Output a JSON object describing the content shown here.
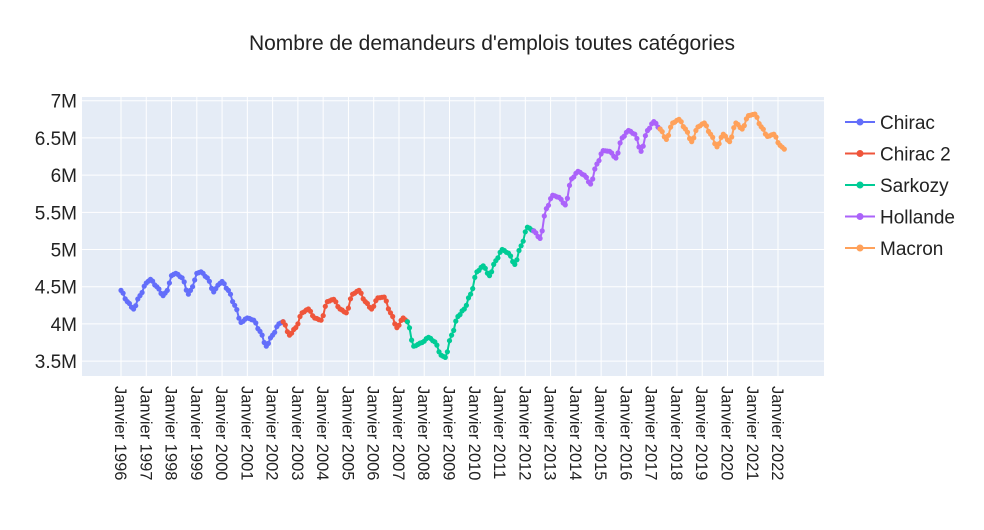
{
  "chart_data": {
    "type": "line",
    "title": "Nombre de demandeurs d'emplois toutes catégories",
    "xlabel": "",
    "ylabel": "",
    "ylim": [
      3300000,
      7050000
    ],
    "x_ticks": [
      "Janvier 1996",
      "Janvier 1997",
      "Janvier 1998",
      "Janvier 1999",
      "Janvier 2000",
      "Janvier 2001",
      "Janvier 2002",
      "Janvier 2003",
      "Janvier 2004",
      "Janvier 2005",
      "Janvier 2006",
      "Janvier 2007",
      "Janvier 2008",
      "Janvier 2009",
      "Janvier 2010",
      "Janvier 2011",
      "Janvier 2012",
      "Janvier 2013",
      "Janvier 2014",
      "Janvier 2015",
      "Janvier 2016",
      "Janvier 2017",
      "Janvier 2018",
      "Janvier 2019",
      "Janvier 2020",
      "Janvier 2021",
      "Janvier 2022"
    ],
    "y_ticks": [
      {
        "value": 3500000,
        "label": "3.5M"
      },
      {
        "value": 4000000,
        "label": "4M"
      },
      {
        "value": 4500000,
        "label": "4.5M"
      },
      {
        "value": 5000000,
        "label": "5M"
      },
      {
        "value": 5500000,
        "label": "5.5M"
      },
      {
        "value": 6000000,
        "label": "6M"
      },
      {
        "value": 6500000,
        "label": "6.5M"
      },
      {
        "value": 7000000,
        "label": "7M"
      }
    ],
    "grid": true,
    "legend_position": "right",
    "series": [
      {
        "name": "Chirac",
        "color": "#636efa",
        "points": [
          [
            "1996-01",
            4450000
          ],
          [
            "1996-04",
            4300000
          ],
          [
            "1996-07",
            4200000
          ],
          [
            "1996-10",
            4380000
          ],
          [
            "1997-01",
            4550000
          ],
          [
            "1997-03",
            4600000
          ],
          [
            "1997-06",
            4500000
          ],
          [
            "1997-09",
            4380000
          ],
          [
            "1997-11",
            4450000
          ],
          [
            "1998-01",
            4650000
          ],
          [
            "1998-03",
            4680000
          ],
          [
            "1998-06",
            4620000
          ],
          [
            "1998-09",
            4400000
          ],
          [
            "1998-11",
            4500000
          ],
          [
            "1999-01",
            4680000
          ],
          [
            "1999-03",
            4700000
          ],
          [
            "1999-06",
            4620000
          ],
          [
            "1999-09",
            4430000
          ],
          [
            "1999-11",
            4520000
          ],
          [
            "2000-01",
            4570000
          ],
          [
            "2000-04",
            4450000
          ],
          [
            "2000-07",
            4250000
          ],
          [
            "2000-10",
            4020000
          ],
          [
            "2001-01",
            4080000
          ],
          [
            "2001-04",
            4050000
          ],
          [
            "2001-07",
            3900000
          ],
          [
            "2001-10",
            3700000
          ],
          [
            "2002-01",
            3850000
          ],
          [
            "2002-04",
            4000000
          ],
          [
            "2002-06",
            4030000
          ]
        ]
      },
      {
        "name": "Chirac 2",
        "color": "#ef553b",
        "points": [
          [
            "2002-06",
            4030000
          ],
          [
            "2002-09",
            3850000
          ],
          [
            "2002-12",
            3950000
          ],
          [
            "2003-03",
            4150000
          ],
          [
            "2003-06",
            4200000
          ],
          [
            "2003-09",
            4080000
          ],
          [
            "2003-12",
            4050000
          ],
          [
            "2004-03",
            4300000
          ],
          [
            "2004-06",
            4330000
          ],
          [
            "2004-09",
            4200000
          ],
          [
            "2004-12",
            4150000
          ],
          [
            "2005-03",
            4400000
          ],
          [
            "2005-06",
            4450000
          ],
          [
            "2005-09",
            4300000
          ],
          [
            "2005-12",
            4200000
          ],
          [
            "2006-03",
            4350000
          ],
          [
            "2006-06",
            4360000
          ],
          [
            "2006-09",
            4150000
          ],
          [
            "2006-12",
            3950000
          ],
          [
            "2007-03",
            4080000
          ],
          [
            "2007-05",
            4030000
          ]
        ]
      },
      {
        "name": "Sarkozy",
        "color": "#00cc96",
        "points": [
          [
            "2007-05",
            4030000
          ],
          [
            "2007-08",
            3700000
          ],
          [
            "2007-12",
            3750000
          ],
          [
            "2008-03",
            3820000
          ],
          [
            "2008-06",
            3760000
          ],
          [
            "2008-09",
            3580000
          ],
          [
            "2008-11",
            3550000
          ],
          [
            "2009-02",
            3850000
          ],
          [
            "2009-05",
            4100000
          ],
          [
            "2009-08",
            4200000
          ],
          [
            "2009-11",
            4400000
          ],
          [
            "2010-02",
            4700000
          ],
          [
            "2010-05",
            4780000
          ],
          [
            "2010-08",
            4650000
          ],
          [
            "2010-11",
            4850000
          ],
          [
            "2011-02",
            5000000
          ],
          [
            "2011-05",
            4950000
          ],
          [
            "2011-08",
            4800000
          ],
          [
            "2011-11",
            5050000
          ],
          [
            "2012-02",
            5300000
          ],
          [
            "2012-05",
            5250000
          ]
        ]
      },
      {
        "name": "Hollande",
        "color": "#ab63fa",
        "points": [
          [
            "2012-05",
            5250000
          ],
          [
            "2012-08",
            5150000
          ],
          [
            "2012-11",
            5550000
          ],
          [
            "2013-02",
            5730000
          ],
          [
            "2013-05",
            5700000
          ],
          [
            "2013-08",
            5600000
          ],
          [
            "2013-11",
            5950000
          ],
          [
            "2014-02",
            6050000
          ],
          [
            "2014-05",
            6000000
          ],
          [
            "2014-08",
            5880000
          ],
          [
            "2014-11",
            6150000
          ],
          [
            "2015-02",
            6330000
          ],
          [
            "2015-05",
            6320000
          ],
          [
            "2015-08",
            6230000
          ],
          [
            "2015-11",
            6500000
          ],
          [
            "2016-02",
            6600000
          ],
          [
            "2016-05",
            6550000
          ],
          [
            "2016-08",
            6320000
          ],
          [
            "2016-11",
            6600000
          ],
          [
            "2017-02",
            6720000
          ],
          [
            "2017-05",
            6620000
          ]
        ]
      },
      {
        "name": "Macron",
        "color": "#ffa15a",
        "points": [
          [
            "2017-05",
            6620000
          ],
          [
            "2017-08",
            6480000
          ],
          [
            "2017-11",
            6700000
          ],
          [
            "2018-02",
            6750000
          ],
          [
            "2018-05",
            6620000
          ],
          [
            "2018-08",
            6450000
          ],
          [
            "2018-11",
            6650000
          ],
          [
            "2019-02",
            6700000
          ],
          [
            "2019-05",
            6550000
          ],
          [
            "2019-08",
            6380000
          ],
          [
            "2019-11",
            6550000
          ],
          [
            "2020-02",
            6450000
          ],
          [
            "2020-05",
            6700000
          ],
          [
            "2020-08",
            6620000
          ],
          [
            "2020-11",
            6800000
          ],
          [
            "2021-02",
            6820000
          ],
          [
            "2021-05",
            6650000
          ],
          [
            "2021-08",
            6520000
          ],
          [
            "2021-11",
            6550000
          ],
          [
            "2022-02",
            6400000
          ],
          [
            "2022-04",
            6350000
          ]
        ]
      }
    ]
  }
}
